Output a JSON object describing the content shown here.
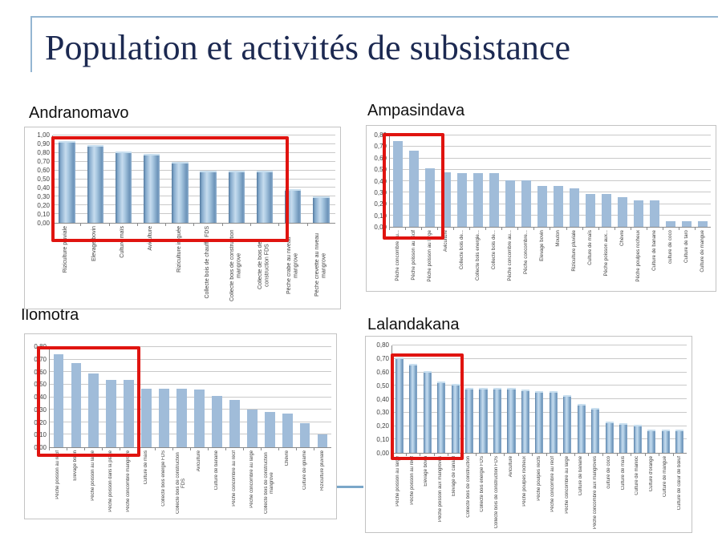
{
  "slide": {
    "title": "Population et activités de subsistance"
  },
  "colors": {
    "accent_line": "#94b6d2",
    "title_text": "#1c2951",
    "highlight_red": "#e01410",
    "bar_flat": "#a0bcd9",
    "bar_gradient_mid": "#c6dcee",
    "gridline": "#c9c9c9"
  },
  "chart_data": [
    {
      "type": "bar",
      "region": "Andranomavo",
      "ylim": [
        0,
        1.0
      ],
      "ytick_step": 0.1,
      "tick_decimals": 2,
      "grid": true,
      "legend": "none",
      "bar_style": "gradient",
      "categories": [
        "Riziculture pluviale",
        "Elevage bovin",
        "Culture maïs",
        "Aviculture",
        "Riziculture irriguée",
        "Collecte bois de chauffe FDS",
        "Collecte bois de construction mangrove",
        "Collecte de bois de construction FDS",
        "Pêche crabe au niveau mangrove",
        "Pêche crevette au niveau mangrove"
      ],
      "values": [
        0.92,
        0.87,
        0.8,
        0.77,
        0.68,
        0.58,
        0.58,
        0.58,
        0.37,
        0.28
      ],
      "highlight": {
        "bars_from": 1,
        "bars_to": 8
      }
    },
    {
      "type": "bar",
      "region": "Ampasindava",
      "ylim": [
        0,
        0.8
      ],
      "ytick_step": 0.1,
      "tick_decimals": 2,
      "grid": true,
      "legend": "none",
      "bar_style": "flat",
      "categories": [
        "Pêche concombre au...",
        "Pêche poisson au récif",
        "Pêche poisson au large",
        "Aviculture",
        "Collecte bois de...",
        "Collecte bois energie...",
        "Collecte bois de...",
        "Pêche concombre au...",
        "Pêche concombre...",
        "Elevage bovin",
        "Mouton",
        "Riziculture pluviale",
        "Culture de maïs",
        "Pêche poisson aux...",
        "Chèvre",
        "Pêche poulpes rocheux",
        "Culture de banane",
        "culture de coco",
        "Culture de taro",
        "Culture de mangue"
      ],
      "values": [
        0.75,
        0.67,
        0.51,
        0.48,
        0.47,
        0.47,
        0.47,
        0.41,
        0.41,
        0.36,
        0.36,
        0.34,
        0.29,
        0.29,
        0.26,
        0.23,
        0.23,
        0.05,
        0.05,
        0.05
      ],
      "highlight": {
        "bars_from": 1,
        "bars_to": 3
      }
    },
    {
      "type": "bar",
      "region": "Ilomotra",
      "ylim": [
        0,
        0.8
      ],
      "ytick_step": 0.1,
      "tick_decimals": 2,
      "grid": true,
      "legend": "none",
      "bar_style": "flat",
      "categories": [
        "Pêche poisson au récif",
        "Elevage bovin",
        "Pêche poisson au large",
        "Pêche poisson dans la plage",
        "Pêche concombre mangrove",
        "Culture de maïs",
        "Collecte bois energie FDS",
        "Collecte bois de construction FDS",
        "Aviculture",
        "Culture de banane",
        "Pêche concombre au récif",
        "Pêche concombre au large",
        "Collecte bois de construction mangrove",
        "Chèvre",
        "Culture de igname",
        "Riziculture pluviale"
      ],
      "values": [
        0.74,
        0.67,
        0.59,
        0.54,
        0.54,
        0.47,
        0.47,
        0.47,
        0.46,
        0.41,
        0.38,
        0.3,
        0.28,
        0.27,
        0.19,
        0.1
      ],
      "highlight": {
        "bars_from": 1,
        "bars_to": 5
      }
    },
    {
      "type": "bar",
      "region": "Lalandakana",
      "ylim": [
        0,
        0.8
      ],
      "ytick_step": 0.1,
      "tick_decimals": 2,
      "grid": true,
      "legend": "none",
      "bar_style": "gradient",
      "categories": [
        "Pêche poisson au large",
        "Pêche poisson au récif",
        "Elevage bovin",
        "Pêche poisson aux mangroves",
        "Elevage de canard",
        "Collecte bois de construction",
        "Collecte bois energie FDS",
        "Collecte bois de construction FDS",
        "Aviculture",
        "Pêche poulpes rocheux",
        "Pêche poulpes récifs",
        "Pêche concombre au récif",
        "Pêche concombre au large",
        "Culture de banane",
        "Pêche concombre aux mangroves",
        "culture de coco",
        "Culture de maïs",
        "Culture de manioc",
        "Culture d'orange",
        "Culture de mangue",
        "Culture de cœur de bœuf"
      ],
      "values": [
        0.7,
        0.65,
        0.6,
        0.52,
        0.5,
        0.47,
        0.47,
        0.47,
        0.47,
        0.46,
        0.45,
        0.45,
        0.42,
        0.35,
        0.32,
        0.22,
        0.21,
        0.2,
        0.16,
        0.16,
        0.16
      ],
      "highlight": {
        "bars_from": 1,
        "bars_to": 5
      }
    }
  ]
}
